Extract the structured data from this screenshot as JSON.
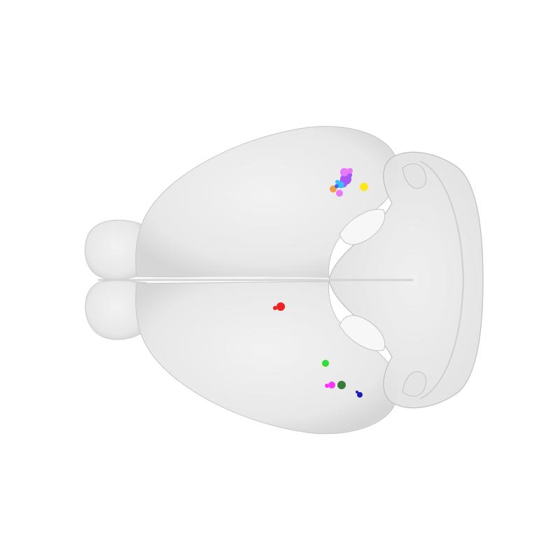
{
  "scene": {
    "view": "dorsal",
    "background_color": "#ffffff",
    "brain_fill_color": "#e6e6e6",
    "brain_outline_color": "#c8c8c8",
    "cerebellum_fill_color": "#dcdcdc"
  },
  "markers": [
    {
      "name": "marker-violet-cluster",
      "color": "#a855f7"
    },
    {
      "name": "marker-pink-cluster",
      "color": "#e879f9"
    },
    {
      "name": "marker-light-blue-cluster",
      "color": "#38bdf8"
    },
    {
      "name": "marker-orange-cluster",
      "color": "#f59e42"
    },
    {
      "name": "marker-blue-cluster",
      "color": "#3b6cf5"
    },
    {
      "name": "marker-yellow",
      "color": "#ffe81a"
    },
    {
      "name": "marker-red",
      "color": "#ee2222"
    },
    {
      "name": "marker-green",
      "color": "#33dd33"
    },
    {
      "name": "marker-magenta",
      "color": "#ff33ff"
    },
    {
      "name": "marker-dark-green",
      "color": "#3a7a3a"
    },
    {
      "name": "marker-dark-blue",
      "color": "#1c1cbb"
    }
  ]
}
